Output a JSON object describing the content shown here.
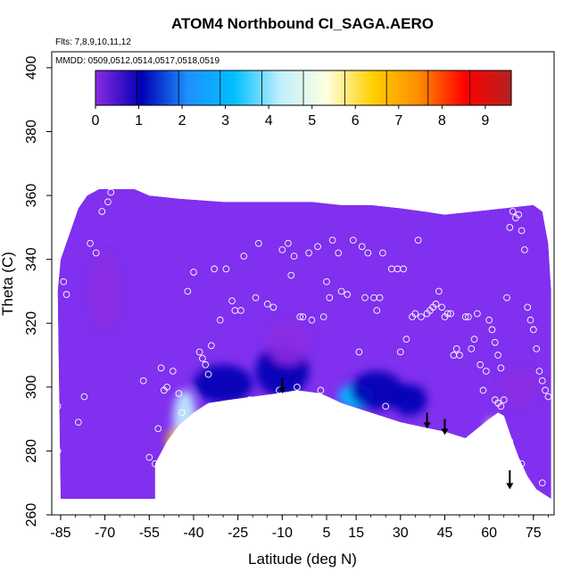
{
  "chart_data": {
    "type": "heatmap",
    "title": "ATOM4 Northbound CI_SAGA.AERO",
    "annotations": {
      "flights": "Flts: 7,8,9,10,11,12",
      "dates": "MMDD: 0509,0512,0514,0517,0518,0519"
    },
    "xlabel": "Latitude (deg N)",
    "ylabel": "Theta (C)",
    "xlim": [
      -88,
      82
    ],
    "ylim": [
      260,
      405
    ],
    "x_ticks": [
      -85,
      -70,
      -55,
      -40,
      -25,
      -10,
      5,
      15,
      30,
      45,
      60,
      75
    ],
    "y_ticks": [
      260,
      280,
      300,
      320,
      340,
      360,
      380,
      400
    ],
    "colorbar": {
      "min": 0,
      "max": 9.6,
      "ticks": [
        0,
        1,
        2,
        3,
        4,
        5,
        6,
        7,
        8,
        9
      ],
      "colors": [
        "#8a2be2",
        "#0000b4",
        "#1e90ff",
        "#00bfff",
        "#bfefff",
        "#ffffe0",
        "#ffd000",
        "#ff8c00",
        "#ff0000",
        "#b22222"
      ]
    },
    "field_background_color": "#8030ee",
    "upper_boundary": [
      [
        -86,
        330
      ],
      [
        -85,
        340
      ],
      [
        -82,
        348
      ],
      [
        -79,
        356
      ],
      [
        -76,
        360
      ],
      [
        -72,
        362
      ],
      [
        -60,
        362
      ],
      [
        -55,
        360
      ],
      [
        -45,
        359
      ],
      [
        -30,
        358
      ],
      [
        -20,
        358
      ],
      [
        -10,
        358
      ],
      [
        0,
        358
      ],
      [
        10,
        357
      ],
      [
        20,
        357
      ],
      [
        30,
        356
      ],
      [
        38,
        355
      ],
      [
        45,
        354
      ],
      [
        55,
        355
      ],
      [
        65,
        356
      ],
      [
        75,
        357
      ],
      [
        78,
        355
      ],
      [
        80,
        345
      ],
      [
        81,
        330
      ],
      [
        81,
        300
      ],
      [
        81,
        265
      ]
    ],
    "lower_boundary": [
      [
        -85,
        265
      ],
      [
        -53,
        265
      ],
      [
        -53,
        276
      ],
      [
        -49,
        283
      ],
      [
        -45,
        288
      ],
      [
        -40,
        292
      ],
      [
        -35,
        295
      ],
      [
        -28,
        296
      ],
      [
        -20,
        297
      ],
      [
        -12,
        298
      ],
      [
        -5,
        299
      ],
      [
        3,
        298
      ],
      [
        10,
        295
      ],
      [
        20,
        292
      ],
      [
        30,
        289
      ],
      [
        40,
        287
      ],
      [
        45,
        286
      ],
      [
        52,
        284
      ],
      [
        56,
        287
      ],
      [
        60,
        290
      ],
      [
        63,
        292
      ],
      [
        65,
        291
      ],
      [
        68,
        283
      ],
      [
        70,
        278
      ],
      [
        73,
        272
      ],
      [
        76,
        268
      ],
      [
        81,
        265
      ]
    ],
    "blobs": [
      {
        "lat": -43,
        "theta": 290,
        "dlat": 4,
        "dtheta": 9,
        "value": 4.5
      },
      {
        "lat": -46,
        "theta": 283,
        "dlat": 3,
        "dtheta": 4,
        "value": 5.8
      },
      {
        "lat": -30,
        "theta": 301,
        "dlat": 10,
        "dtheta": 6,
        "value": 1.2
      },
      {
        "lat": -10,
        "theta": 305,
        "dlat": 9,
        "dtheta": 8,
        "value": 1.0
      },
      {
        "lat": -8,
        "theta": 314,
        "dlat": 7,
        "dtheta": 7,
        "value": 0.6
      },
      {
        "lat": 15,
        "theta": 297,
        "dlat": 6,
        "dtheta": 4,
        "value": 3.5
      },
      {
        "lat": 22,
        "theta": 299,
        "dlat": 9,
        "dtheta": 6,
        "value": 1.8
      },
      {
        "lat": 33,
        "theta": 296,
        "dlat": 6,
        "dtheta": 5,
        "value": 1.0
      },
      {
        "lat": 62,
        "theta": 281,
        "dlat": 3,
        "dtheta": 5,
        "value": 7.3
      },
      {
        "lat": 61,
        "theta": 287,
        "dlat": 2,
        "dtheta": 3,
        "value": 5.2
      },
      {
        "lat": 63,
        "theta": 274,
        "dlat": 3,
        "dtheta": 3,
        "value": 4.8
      },
      {
        "lat": -70,
        "theta": 330,
        "dlat": 5,
        "dtheta": 12,
        "value": 0.2
      },
      {
        "lat": 70,
        "theta": 300,
        "dlat": 6,
        "dtheta": 6,
        "value": 0.5
      }
    ],
    "arrows": [
      {
        "lat": -10,
        "theta_top": 303,
        "theta_tip": 298
      },
      {
        "lat": 39,
        "theta_top": 292,
        "theta_tip": 287
      },
      {
        "lat": 45,
        "theta_top": 290,
        "theta_tip": 285
      },
      {
        "lat": 67,
        "theta_top": 274,
        "theta_tip": 268
      }
    ],
    "samples": [
      [
        -86,
        294
      ],
      [
        -86,
        280
      ],
      [
        -84,
        333
      ],
      [
        -83,
        329
      ],
      [
        -79,
        289
      ],
      [
        -77,
        297
      ],
      [
        -75,
        345
      ],
      [
        -73,
        342
      ],
      [
        -71,
        355
      ],
      [
        -69,
        358
      ],
      [
        -68,
        361
      ],
      [
        -57,
        302
      ],
      [
        -55,
        278
      ],
      [
        -53,
        276
      ],
      [
        -52,
        287
      ],
      [
        -51,
        306
      ],
      [
        -50,
        299
      ],
      [
        -49,
        300
      ],
      [
        -47,
        305
      ],
      [
        -45,
        298
      ],
      [
        -44,
        292
      ],
      [
        -42,
        330
      ],
      [
        -40,
        336
      ],
      [
        -38,
        311
      ],
      [
        -37,
        309
      ],
      [
        -36,
        307
      ],
      [
        -35,
        304
      ],
      [
        -34,
        313
      ],
      [
        -33,
        337
      ],
      [
        -31,
        321
      ],
      [
        -29,
        337
      ],
      [
        -27,
        327
      ],
      [
        -26,
        324
      ],
      [
        -24,
        324
      ],
      [
        -23,
        341
      ],
      [
        -21,
        296
      ],
      [
        -19,
        328
      ],
      [
        -18,
        345
      ],
      [
        -15,
        326
      ],
      [
        -13,
        325
      ],
      [
        -11,
        299
      ],
      [
        -10,
        343
      ],
      [
        -8,
        345
      ],
      [
        -7,
        335
      ],
      [
        -6,
        341
      ],
      [
        -5,
        300
      ],
      [
        -4,
        322
      ],
      [
        -3,
        322
      ],
      [
        -1,
        342
      ],
      [
        0,
        321
      ],
      [
        2,
        344
      ],
      [
        3,
        299
      ],
      [
        4,
        322
      ],
      [
        5,
        333
      ],
      [
        6,
        328
      ],
      [
        7,
        346
      ],
      [
        9,
        342
      ],
      [
        10,
        330
      ],
      [
        12,
        329
      ],
      [
        14,
        346
      ],
      [
        16,
        311
      ],
      [
        17,
        344
      ],
      [
        18,
        328
      ],
      [
        19,
        342
      ],
      [
        21,
        328
      ],
      [
        22,
        324
      ],
      [
        23,
        328
      ],
      [
        24,
        342
      ],
      [
        25,
        294
      ],
      [
        27,
        337
      ],
      [
        29,
        337
      ],
      [
        30,
        311
      ],
      [
        31,
        337
      ],
      [
        32,
        315
      ],
      [
        34,
        322
      ],
      [
        35,
        323
      ],
      [
        36,
        346
      ],
      [
        37,
        322
      ],
      [
        39,
        323
      ],
      [
        40,
        324
      ],
      [
        41,
        325
      ],
      [
        42,
        326
      ],
      [
        43,
        330
      ],
      [
        44,
        325
      ],
      [
        45,
        322
      ],
      [
        46,
        323
      ],
      [
        47,
        323
      ],
      [
        48,
        310
      ],
      [
        49,
        312
      ],
      [
        50,
        310
      ],
      [
        52,
        322
      ],
      [
        53,
        322
      ],
      [
        54,
        312
      ],
      [
        55,
        315
      ],
      [
        56,
        323
      ],
      [
        57,
        307
      ],
      [
        58,
        299
      ],
      [
        59,
        305
      ],
      [
        60,
        321
      ],
      [
        61,
        318
      ],
      [
        62,
        314
      ],
      [
        63,
        310
      ],
      [
        64,
        306
      ],
      [
        65,
        296
      ],
      [
        66,
        328
      ],
      [
        67,
        350
      ],
      [
        68,
        355
      ],
      [
        69,
        353
      ],
      [
        70,
        354
      ],
      [
        71,
        349
      ],
      [
        72,
        343
      ],
      [
        73,
        325
      ],
      [
        74,
        321
      ],
      [
        75,
        318
      ],
      [
        76,
        312
      ],
      [
        77,
        305
      ],
      [
        78,
        302
      ],
      [
        79,
        299
      ],
      [
        80,
        297
      ],
      [
        67,
        283
      ],
      [
        66,
        276
      ],
      [
        71,
        276
      ],
      [
        73,
        268
      ],
      [
        78,
        270
      ],
      [
        62,
        296
      ],
      [
        63,
        295
      ],
      [
        64,
        294
      ]
    ]
  }
}
